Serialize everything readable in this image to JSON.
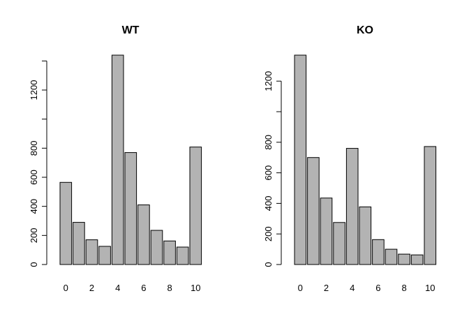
{
  "chart_data": [
    {
      "type": "bar",
      "title": "WT",
      "categories": [
        "0",
        "1",
        "2",
        "3",
        "4",
        "5",
        "6",
        "7",
        "8",
        "9",
        "10"
      ],
      "x_tick_labels": [
        "0",
        "2",
        "4",
        "6",
        "8",
        "10"
      ],
      "values": [
        565,
        290,
        170,
        125,
        1440,
        770,
        410,
        235,
        162,
        120,
        808
      ],
      "y_tick_labels": [
        "0",
        "200",
        "400",
        "600",
        "800",
        "",
        "1200",
        ""
      ],
      "y_tick_values": [
        0,
        200,
        400,
        600,
        800,
        1000,
        1200,
        1400
      ],
      "ylim": [
        0,
        1440
      ],
      "xlabel": "",
      "ylabel": ""
    },
    {
      "type": "bar",
      "title": "KO",
      "categories": [
        "0",
        "1",
        "2",
        "3",
        "4",
        "5",
        "6",
        "7",
        "8",
        "9",
        "10"
      ],
      "x_tick_labels": [
        "0",
        "2",
        "4",
        "6",
        "8",
        "10"
      ],
      "values": [
        1370,
        700,
        435,
        275,
        760,
        377,
        163,
        100,
        68,
        63,
        772
      ],
      "y_tick_labels": [
        "0",
        "200",
        "400",
        "600",
        "800",
        "",
        "1200"
      ],
      "y_tick_values": [
        0,
        200,
        400,
        600,
        800,
        1000,
        1200
      ],
      "ylim": [
        0,
        1370
      ],
      "xlabel": "",
      "ylabel": ""
    }
  ]
}
